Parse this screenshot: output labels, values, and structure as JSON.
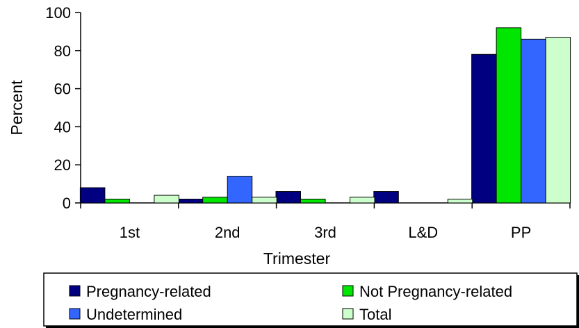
{
  "chart_data": {
    "type": "bar",
    "xlabel": "Trimester",
    "ylabel": "Percent",
    "ylim": [
      0,
      100
    ],
    "yticks": [
      0,
      20,
      40,
      60,
      80,
      100
    ],
    "grid": false,
    "legend_position": "bottom",
    "categories": [
      "1st",
      "2nd",
      "3rd",
      "L&D",
      "PP"
    ],
    "series": [
      {
        "name": "Pregnancy-related",
        "color": "#000080",
        "values": [
          8,
          2,
          6,
          6,
          78
        ]
      },
      {
        "name": "Not Pregnancy-related",
        "color": "#00e600",
        "values": [
          2,
          3,
          2,
          0,
          92
        ]
      },
      {
        "name": "Undetermined",
        "color": "#3366ff",
        "values": [
          0,
          14,
          0,
          0,
          86
        ]
      },
      {
        "name": "Total",
        "color": "#ccffcc",
        "values": [
          4,
          3,
          3,
          2,
          87
        ]
      }
    ]
  }
}
